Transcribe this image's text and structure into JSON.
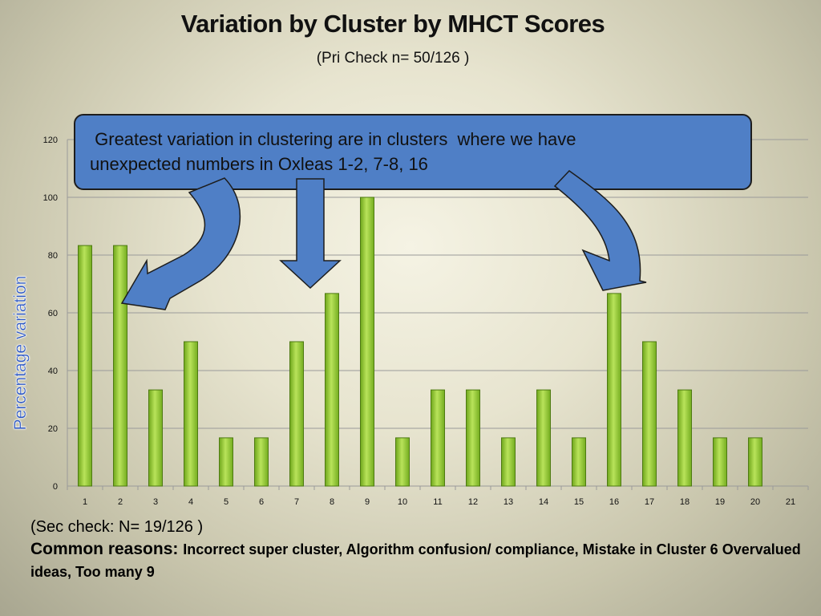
{
  "title": "Variation by Cluster by MHCT Scores",
  "subtitle": "(Pri Check n= 50/126 )",
  "callout": {
    "line1": " Greatest variation in clustering are in clusters  where we have",
    "line2": "unexpected numbers in Oxleas 1-2, 7-8, 16"
  },
  "footer": {
    "sec_check": "(Sec check: N= 19/126 )",
    "reasons_lead": "Common reasons: ",
    "reasons_text": "Incorrect super cluster, Algorithm confusion/ compliance, Mistake in Cluster 6 Overvalued ideas,  Too many 9"
  },
  "colors": {
    "bar_fill": "#8fca2f",
    "bar_stroke": "#4e7a12",
    "gridline": "#9a9a9a",
    "callout_fill": "#4f7fc6",
    "arrow_fill": "#4f7fc6",
    "ylabel_color": "#2b56c2"
  },
  "chart_data": {
    "type": "bar",
    "categories": [
      "1",
      "2",
      "3",
      "4",
      "5",
      "6",
      "7",
      "8",
      "9",
      "10",
      "11",
      "12",
      "13",
      "14",
      "15",
      "16",
      "17",
      "18",
      "19",
      "20",
      "21"
    ],
    "values": [
      83.3,
      83.3,
      33.3,
      50,
      16.7,
      16.7,
      50,
      66.7,
      100,
      16.7,
      33.3,
      33.3,
      16.7,
      33.3,
      16.7,
      66.7,
      50,
      33.3,
      16.7,
      16.7,
      0
    ],
    "yticks": [
      "0",
      "20",
      "40",
      "60",
      "80",
      "100",
      "120"
    ],
    "ylim": [
      0,
      120
    ],
    "ylabel": "Percentage variation",
    "xlabel": "",
    "grid": true
  }
}
